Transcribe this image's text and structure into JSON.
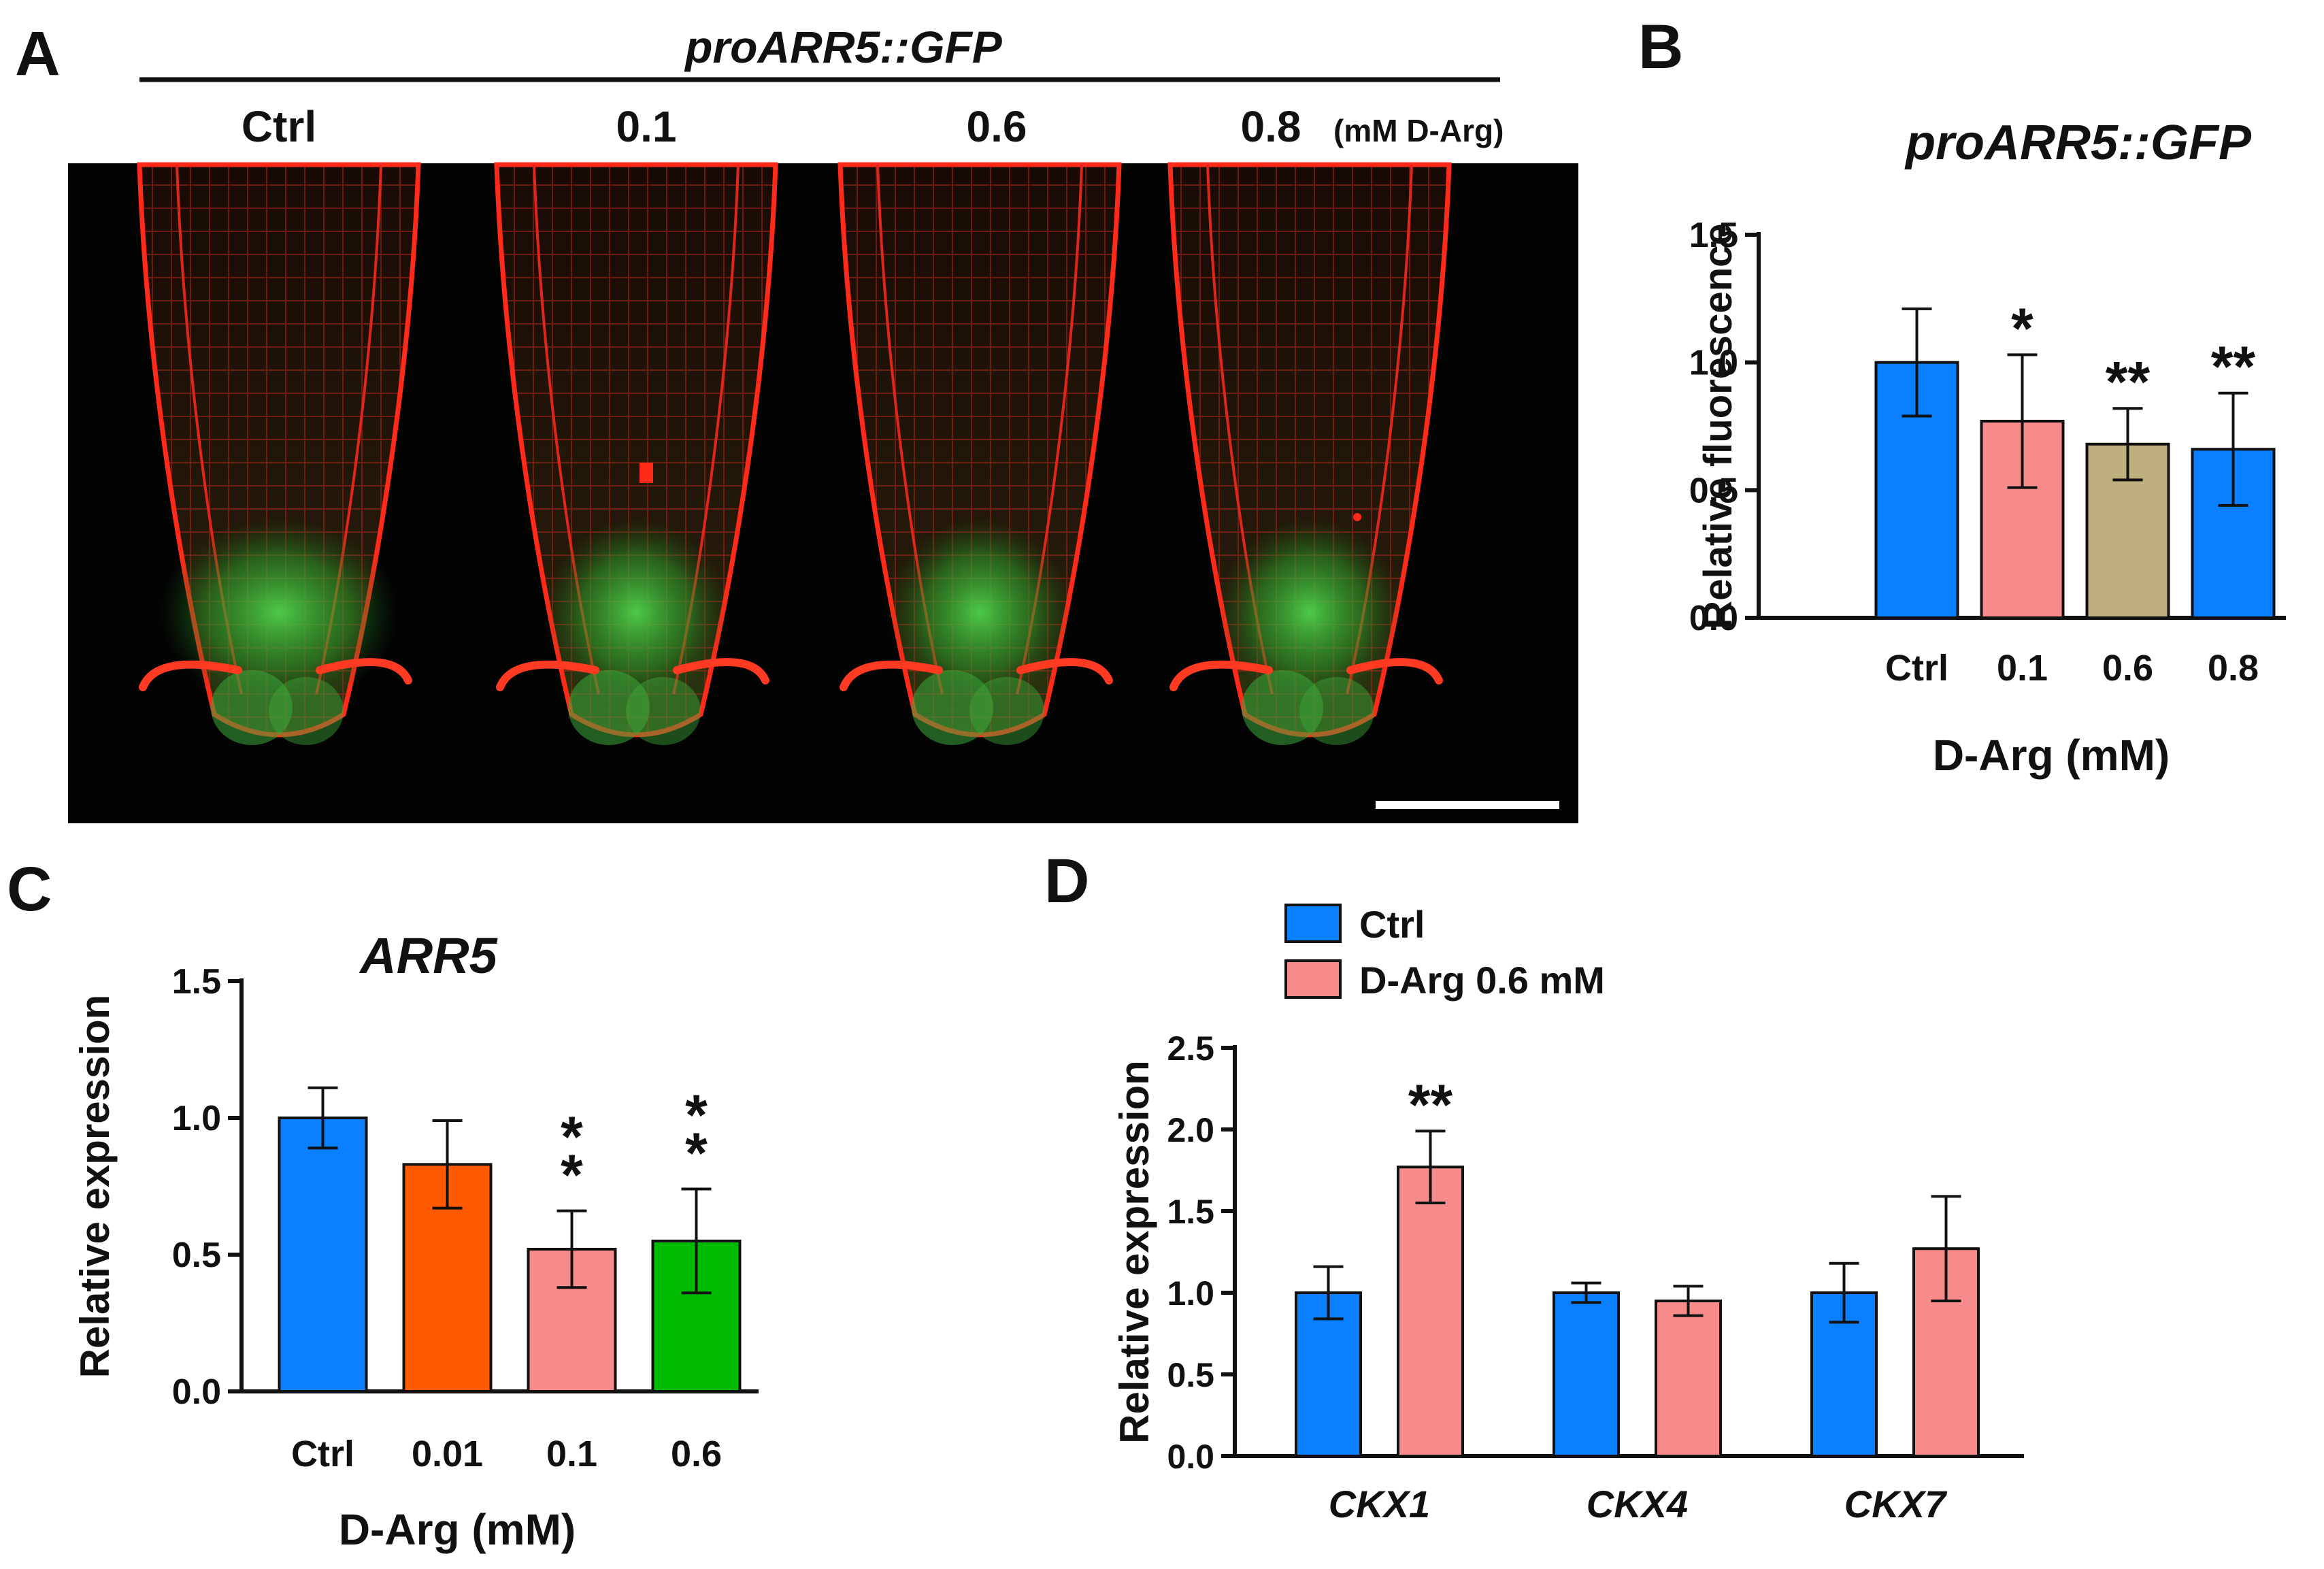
{
  "panels": {
    "A": {
      "letter": "A",
      "title": "proARR5::GFP",
      "conditions": [
        "Ctrl",
        "0.1",
        "0.6",
        "0.8"
      ],
      "unit_note": "(mM D-Arg)"
    },
    "B": {
      "letter": "B"
    },
    "C": {
      "letter": "C"
    },
    "D": {
      "letter": "D"
    }
  },
  "colors": {
    "blue": "#0a7fff",
    "pink": "#f78a8a",
    "orange": "#ff5a00",
    "green": "#00bb00",
    "tan": "#bdb07e",
    "axis": "#111111",
    "micro_bg": "#030303"
  },
  "chart_data": [
    {
      "panel": "B",
      "type": "bar",
      "title": "proARR5::GFP",
      "xlabel": "D-Arg (mM)",
      "ylabel": "Relative fluorescence",
      "categories": [
        "Ctrl",
        "0.1",
        "0.6",
        "0.8"
      ],
      "values": [
        1.0,
        0.77,
        0.68,
        0.66
      ],
      "errors": [
        0.21,
        0.26,
        0.14,
        0.22
      ],
      "bar_colors": [
        "#0a7fff",
        "#f78a8a",
        "#bdb07e",
        "#0a7fff"
      ],
      "significance": [
        "",
        "*",
        "**",
        "**"
      ],
      "ylim": [
        0,
        1.5
      ],
      "yticks": [
        "0.0",
        "0.5",
        "1.0",
        "1.5"
      ],
      "grid": false
    },
    {
      "panel": "C",
      "type": "bar",
      "title": "ARR5",
      "xlabel": "D-Arg (mM)",
      "ylabel": "Relative expression",
      "categories": [
        "Ctrl",
        "0.01",
        "0.1",
        "0.6"
      ],
      "values": [
        1.0,
        0.83,
        0.52,
        0.55
      ],
      "errors": [
        0.11,
        0.16,
        0.14,
        0.19
      ],
      "bar_colors": [
        "#0a7fff",
        "#ff5a00",
        "#f78a8a",
        "#00bb00"
      ],
      "significance": [
        "",
        "",
        "**",
        "**"
      ],
      "ylim": [
        0,
        1.5
      ],
      "yticks": [
        "0.0",
        "0.5",
        "1.0",
        "1.5"
      ],
      "grid": false
    },
    {
      "panel": "D",
      "type": "bar",
      "title": "",
      "xlabel": "",
      "ylabel": "Relative expression",
      "categories": [
        "CKX1",
        "CKX4",
        "CKX7"
      ],
      "series": [
        {
          "name": "Ctrl",
          "values": [
            1.0,
            1.0,
            1.0
          ],
          "errors": [
            0.16,
            0.06,
            0.18
          ],
          "color": "#0a7fff",
          "significance": [
            "",
            "",
            ""
          ]
        },
        {
          "name": "D-Arg 0.6 mM",
          "values": [
            1.77,
            0.95,
            1.27
          ],
          "errors": [
            0.22,
            0.09,
            0.32
          ],
          "color": "#f78a8a",
          "significance": [
            "**",
            "",
            ""
          ]
        }
      ],
      "legend_position": "top-left",
      "ylim": [
        0,
        2.5
      ],
      "yticks": [
        "0.0",
        "0.5",
        "1.0",
        "1.5",
        "2.0",
        "2.5"
      ],
      "grid": false
    }
  ]
}
